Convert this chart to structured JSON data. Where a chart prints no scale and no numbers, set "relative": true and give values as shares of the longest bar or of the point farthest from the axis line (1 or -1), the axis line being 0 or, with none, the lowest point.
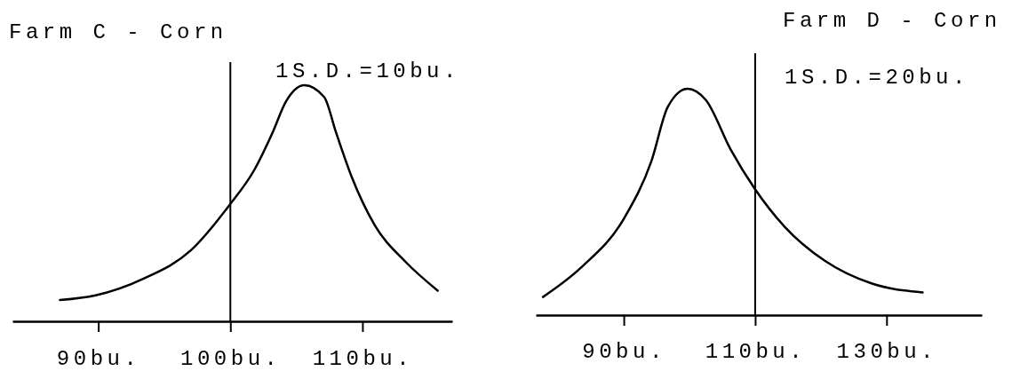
{
  "chart_data": [
    {
      "type": "line",
      "title": "Farm C - Corn",
      "annotations": [
        "1S.D.=10bu."
      ],
      "relative": true,
      "x": [
        87.1,
        89.8,
        93.4,
        97,
        99.9,
        101.8,
        103.2,
        104.2,
        105.6,
        107.1,
        108,
        109.2,
        110.9,
        113.3,
        115.7
      ],
      "series": [
        {
          "color": "#000000",
          "values": [
            0.09,
            0.11,
            0.18,
            0.3,
            0.49,
            0.64,
            0.8,
            0.93,
            1,
            0.95,
            0.8,
            0.61,
            0.41,
            0.25,
            0.13
          ]
        }
      ],
      "xlim": [
        83.5,
        116.8
      ],
      "xticks": [
        {
          "value": 90,
          "label": "90bu."
        },
        {
          "value": 100,
          "label": "100bu."
        },
        {
          "value": 110,
          "label": "110bu."
        }
      ],
      "ref_lines": [
        {
          "axis": "x",
          "value": 100
        }
      ]
    },
    {
      "type": "line",
      "title": "Farm D - Corn",
      "annotations": [
        "1S.D.=20bu."
      ],
      "relative": true,
      "x": [
        77.7,
        83.5,
        90.1,
        94.2,
        96.7,
        99.7,
        102.5,
        106.3,
        109.9,
        114.5,
        120.6,
        127.7,
        135.5
      ],
      "series": [
        {
          "color": "#000000",
          "values": [
            0.08,
            0.21,
            0.43,
            0.68,
            0.92,
            1,
            0.95,
            0.73,
            0.56,
            0.39,
            0.24,
            0.14,
            0.1
          ]
        }
      ],
      "xlim": [
        76.6,
        144.5
      ],
      "xticks": [
        {
          "value": 90,
          "label": "90bu."
        },
        {
          "value": 110,
          "label": "110bu."
        },
        {
          "value": 130,
          "label": "130bu."
        }
      ],
      "ref_lines": [
        {
          "axis": "x",
          "value": 110
        }
      ]
    }
  ]
}
